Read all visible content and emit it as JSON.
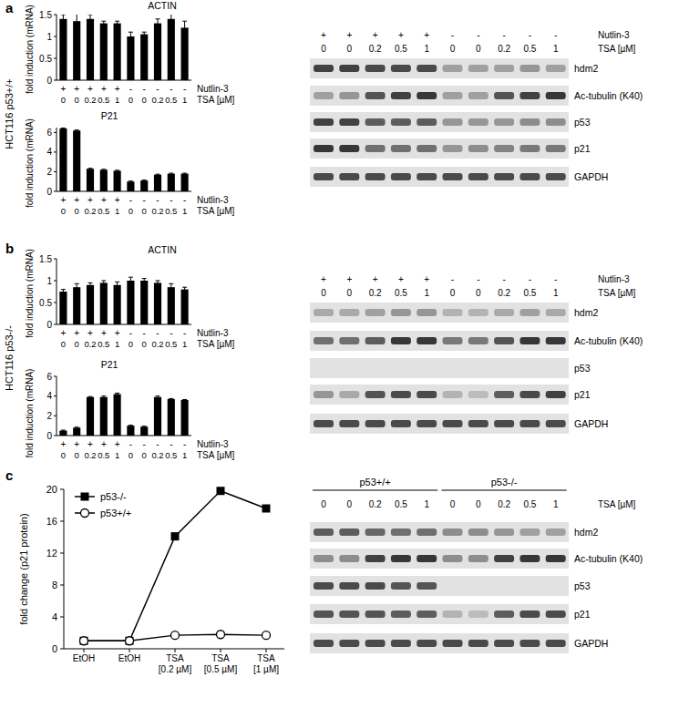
{
  "figure": {
    "panels": [
      {
        "label": "a",
        "row_label": "HCT116 p53+/+"
      },
      {
        "label": "b",
        "row_label": "HCT116 p53-/-"
      },
      {
        "label": "c"
      }
    ]
  },
  "chart_data": [
    {
      "type": "bar",
      "title": "ACTIN",
      "ylabel": "fold induction (mRNA)",
      "xlabel": "TSA [µM]",
      "treatment": {
        "name": "Nutlin-3",
        "labels": [
          "+",
          "+",
          "+",
          "+",
          "+",
          "-",
          "-",
          "-",
          "-",
          "-"
        ]
      },
      "categories": [
        "0",
        "0",
        "0.2",
        "0.5",
        "1",
        "0",
        "0",
        "0.2",
        "0.5",
        "1"
      ],
      "values": [
        1.4,
        1.35,
        1.4,
        1.3,
        1.3,
        1.0,
        1.05,
        1.3,
        1.4,
        1.2
      ],
      "errors": [
        0.1,
        0.3,
        0.1,
        0.05,
        0.05,
        0.1,
        0.05,
        0.1,
        0.15,
        0.15
      ],
      "color": "#000000",
      "ylim": [
        0,
        1.5
      ],
      "yticks": [
        0,
        0.5,
        1,
        1.5
      ]
    },
    {
      "type": "bar",
      "title": "P21",
      "ylabel": "fold induction (mRNA)",
      "xlabel": "TSA [µM]",
      "treatment": {
        "name": "Nutlin-3",
        "labels": [
          "+",
          "+",
          "+",
          "+",
          "+",
          "-",
          "-",
          "-",
          "-",
          "-"
        ]
      },
      "categories": [
        "0",
        "0",
        "0.2",
        "0.5",
        "1",
        "0",
        "0",
        "0.2",
        "0.5",
        "1"
      ],
      "values": [
        6.4,
        6.2,
        2.3,
        2.2,
        2.1,
        1.0,
        1.1,
        1.7,
        1.8,
        1.8
      ],
      "errors": [
        0.05,
        0.05,
        0.05,
        0.05,
        0.05,
        0.05,
        0.05,
        0.05,
        0.05,
        0.05
      ],
      "color": "#000000",
      "ylim": [
        0,
        6.5
      ],
      "yticks": [
        0,
        2,
        4,
        6
      ]
    },
    {
      "type": "bar",
      "title": "ACTIN",
      "ylabel": "fold induction (mRNA)",
      "xlabel": "TSA [µM]",
      "treatment": {
        "name": "Nutlin-3",
        "labels": [
          "+",
          "+",
          "+",
          "+",
          "+",
          "-",
          "-",
          "-",
          "-",
          "-"
        ]
      },
      "categories": [
        "0",
        "0",
        "0.2",
        "0.5",
        "1",
        "0",
        "0",
        "0.2",
        "0.5",
        "1"
      ],
      "values": [
        0.75,
        0.85,
        0.9,
        0.95,
        0.9,
        1.0,
        1.0,
        0.95,
        0.85,
        0.8
      ],
      "errors": [
        0.05,
        0.08,
        0.05,
        0.05,
        0.07,
        0.08,
        0.05,
        0.05,
        0.08,
        0.05
      ],
      "color": "#000000",
      "ylim": [
        0,
        1.5
      ],
      "yticks": [
        0,
        0.5,
        1,
        1.5
      ]
    },
    {
      "type": "bar",
      "title": "P21",
      "ylabel": "fold induction (mRNA)",
      "xlabel": "TSA [µM]",
      "treatment": {
        "name": "Nutlin-3",
        "labels": [
          "+",
          "+",
          "+",
          "+",
          "+",
          "-",
          "-",
          "-",
          "-",
          "-"
        ]
      },
      "categories": [
        "0",
        "0",
        "0.2",
        "0.5",
        "1",
        "0",
        "0",
        "0.2",
        "0.5",
        "1"
      ],
      "values": [
        0.5,
        0.8,
        3.9,
        3.9,
        4.2,
        1.0,
        0.9,
        3.9,
        3.7,
        3.6
      ],
      "errors": [
        0.05,
        0.05,
        0.05,
        0.1,
        0.1,
        0.05,
        0.05,
        0.1,
        0.05,
        0.05
      ],
      "color": "#000000",
      "ylim": [
        0,
        6
      ],
      "yticks": [
        0,
        2,
        4,
        6
      ]
    },
    {
      "type": "line",
      "ylabel": "fold change (p21 protein)",
      "categories": [
        "EtOH",
        "EtOH",
        "TSA [0.2 µM]",
        "TSA [0.5 µM]",
        "TSA [1 µM]"
      ],
      "series": [
        {
          "name": "p53-/-",
          "color": "#000000",
          "marker": "square",
          "values": [
            1,
            1,
            14.1,
            19.8,
            17.6
          ]
        },
        {
          "name": "p53+/+",
          "color": "#000000",
          "marker": "open-circle",
          "values": [
            1,
            1,
            1.7,
            1.8,
            1.7
          ]
        }
      ],
      "ylim": [
        0,
        20
      ],
      "yticks": [
        0,
        4,
        8,
        12,
        16,
        20
      ],
      "legend": "upper-left"
    }
  ],
  "blots": [
    {
      "header_rows": [
        {
          "label": "Nutlin-3",
          "cells": [
            "+",
            "+",
            "+",
            "+",
            "+",
            "-",
            "-",
            "-",
            "-",
            "-"
          ]
        },
        {
          "label": "TSA [µM]",
          "cells": [
            "0",
            "0",
            "0.2",
            "0.5",
            "1",
            "0",
            "0",
            "0.2",
            "0.5",
            "1"
          ]
        }
      ],
      "bands": [
        {
          "name": "hdm2",
          "intensity": [
            0.85,
            0.85,
            0.8,
            0.8,
            0.8,
            0.35,
            0.35,
            0.35,
            0.4,
            0.35
          ]
        },
        {
          "name": "Ac-tubulin (K40)",
          "intensity": [
            0.35,
            0.4,
            0.75,
            0.85,
            0.9,
            0.35,
            0.35,
            0.75,
            0.85,
            0.9
          ]
        },
        {
          "name": "p53",
          "intensity": [
            0.85,
            0.85,
            0.7,
            0.7,
            0.7,
            0.4,
            0.4,
            0.4,
            0.45,
            0.45
          ]
        },
        {
          "name": "p21",
          "intensity": [
            0.9,
            0.9,
            0.6,
            0.6,
            0.6,
            0.4,
            0.45,
            0.5,
            0.55,
            0.55
          ]
        },
        {
          "name": "GAPDH",
          "intensity": [
            0.8,
            0.8,
            0.8,
            0.8,
            0.8,
            0.8,
            0.8,
            0.8,
            0.8,
            0.8
          ]
        }
      ]
    },
    {
      "header_rows": [
        {
          "label": "Nutlin-3",
          "cells": [
            "+",
            "+",
            "+",
            "+",
            "+",
            "-",
            "-",
            "-",
            "-",
            "-"
          ]
        },
        {
          "label": "TSA [µM]",
          "cells": [
            "0",
            "0",
            "0.2",
            "0.5",
            "1",
            "0",
            "0",
            "0.2",
            "0.5",
            "1"
          ]
        }
      ],
      "bands": [
        {
          "name": "hdm2",
          "intensity": [
            0.3,
            0.3,
            0.35,
            0.4,
            0.4,
            0.25,
            0.25,
            0.3,
            0.35,
            0.3
          ]
        },
        {
          "name": "Ac-tubulin (K40)",
          "intensity": [
            0.6,
            0.6,
            0.7,
            0.9,
            0.9,
            0.55,
            0.55,
            0.75,
            0.9,
            0.9
          ]
        },
        {
          "name": "p53",
          "intensity": [
            0,
            0,
            0,
            0,
            0,
            0,
            0,
            0,
            0,
            0
          ]
        },
        {
          "name": "p21",
          "intensity": [
            0.4,
            0.3,
            0.75,
            0.8,
            0.8,
            0.25,
            0.2,
            0.7,
            0.8,
            0.85
          ]
        },
        {
          "name": "GAPDH",
          "intensity": [
            0.8,
            0.8,
            0.8,
            0.8,
            0.8,
            0.8,
            0.8,
            0.8,
            0.8,
            0.8
          ]
        }
      ]
    },
    {
      "groups": [
        {
          "label": "p53+/+",
          "span": 5
        },
        {
          "label": "p53-/-",
          "span": 5
        }
      ],
      "header_rows": [
        {
          "label": "TSA [µM]",
          "cells": [
            "0",
            "0",
            "0.2",
            "0.5",
            "1",
            "0",
            "0",
            "0.2",
            "0.5",
            "1"
          ]
        }
      ],
      "bands": [
        {
          "name": "hdm2",
          "intensity": [
            0.7,
            0.7,
            0.65,
            0.6,
            0.6,
            0.45,
            0.45,
            0.4,
            0.35,
            0.35
          ]
        },
        {
          "name": "Ac-tubulin (K40)",
          "intensity": [
            0.45,
            0.45,
            0.85,
            0.9,
            0.9,
            0.45,
            0.45,
            0.85,
            0.9,
            0.9
          ]
        },
        {
          "name": "p53",
          "intensity": [
            0.8,
            0.8,
            0.8,
            0.75,
            0.75,
            0,
            0,
            0,
            0,
            0
          ]
        },
        {
          "name": "p21",
          "intensity": [
            0.75,
            0.75,
            0.75,
            0.7,
            0.7,
            0.25,
            0.2,
            0.7,
            0.8,
            0.8
          ]
        },
        {
          "name": "GAPDH",
          "intensity": [
            0.8,
            0.8,
            0.8,
            0.8,
            0.8,
            0.8,
            0.8,
            0.8,
            0.8,
            0.8
          ]
        }
      ]
    }
  ]
}
